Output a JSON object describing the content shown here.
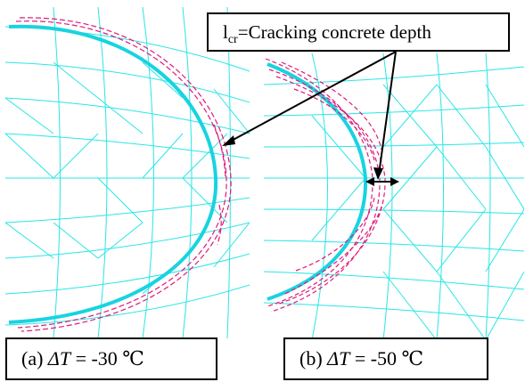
{
  "callout": {
    "symbol": "l",
    "subscript": "cr",
    "text": "=Cracking concrete  depth"
  },
  "panels": [
    {
      "prefix": "(a) ",
      "variable": "ΔT",
      "value": " = -30 ℃"
    },
    {
      "prefix": "(b) ",
      "variable": "ΔT",
      "value": " = -50 ℃"
    }
  ],
  "colors": {
    "mesh": "#29e6e6",
    "interface": "#19d3e0",
    "crack": "#e0197a",
    "annotation": "#000000"
  }
}
